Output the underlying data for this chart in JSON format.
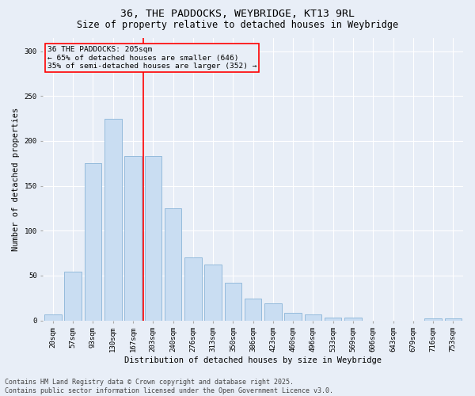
{
  "title_line1": "36, THE PADDOCKS, WEYBRIDGE, KT13 9RL",
  "title_line2": "Size of property relative to detached houses in Weybridge",
  "xlabel": "Distribution of detached houses by size in Weybridge",
  "ylabel": "Number of detached properties",
  "bar_color": "#c9ddf2",
  "bar_edge_color": "#8ab4d8",
  "background_color": "#e8eef7",
  "grid_color": "#ffffff",
  "categories": [
    "20sqm",
    "57sqm",
    "93sqm",
    "130sqm",
    "167sqm",
    "203sqm",
    "240sqm",
    "276sqm",
    "313sqm",
    "350sqm",
    "386sqm",
    "423sqm",
    "460sqm",
    "496sqm",
    "533sqm",
    "569sqm",
    "606sqm",
    "643sqm",
    "679sqm",
    "716sqm",
    "753sqm"
  ],
  "values": [
    7,
    54,
    175,
    225,
    183,
    183,
    125,
    70,
    62,
    42,
    24,
    19,
    8,
    7,
    3,
    3,
    0,
    0,
    0,
    2,
    2
  ],
  "ylim": [
    0,
    315
  ],
  "yticks": [
    0,
    50,
    100,
    150,
    200,
    250,
    300
  ],
  "annotation_line1": "36 THE PADDOCKS: 205sqm",
  "annotation_line2": "← 65% of detached houses are smaller (646)",
  "annotation_line3": "35% of semi-detached houses are larger (352) →",
  "footer_line1": "Contains HM Land Registry data © Crown copyright and database right 2025.",
  "footer_line2": "Contains public sector information licensed under the Open Government Licence v3.0.",
  "title_fontsize": 9.5,
  "subtitle_fontsize": 8.5,
  "label_fontsize": 7.5,
  "tick_fontsize": 6.5,
  "annotation_fontsize": 6.8,
  "footer_fontsize": 6.0,
  "vline_x": 4.5
}
